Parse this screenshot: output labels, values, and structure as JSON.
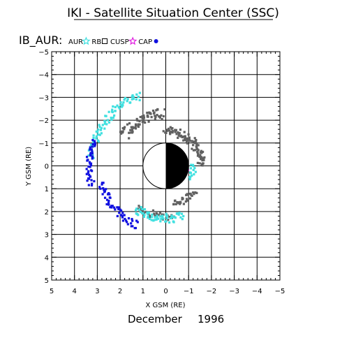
{
  "chart_data": {
    "type": "scatter",
    "title": "IKI - Satellite Situation Center (SSC)",
    "panel_label": "IB_AUR:",
    "xlabel": "X GSM (RE)",
    "ylabel": "Y GSM (RE)",
    "footer_month": "December",
    "footer_year": "1996",
    "xlim": [
      5,
      -5
    ],
    "ylim": [
      -5,
      5
    ],
    "x_ticks": [
      5,
      4,
      3,
      2,
      1,
      0,
      -1,
      -2,
      -3,
      -4,
      -5
    ],
    "x_tick_labels": [
      "5",
      "4",
      "3",
      "2",
      "1",
      "0",
      "−1",
      "−2",
      "−3",
      "−4",
      "−5"
    ],
    "y_ticks": [
      -5,
      -4,
      -3,
      -2,
      -1,
      0,
      1,
      2,
      3,
      4,
      5
    ],
    "y_tick_labels": [
      "−5",
      "−4",
      "−3",
      "−2",
      "−1",
      "0",
      "1",
      "2",
      "3",
      "4",
      "5"
    ],
    "grid": true,
    "legend_position": "top-left",
    "earth": {
      "radius": 1,
      "dayside_color": "#ffffff",
      "nightside_color": "#000000"
    },
    "series": [
      {
        "name": "AUR",
        "marker": "star",
        "color": "#40e0e0"
      },
      {
        "name": "RB",
        "marker": "square",
        "color": "#606060"
      },
      {
        "name": "CUSP",
        "marker": "star",
        "color": "#e020e0"
      },
      {
        "name": "CAP",
        "marker": "circle",
        "color": "#1010e0"
      }
    ],
    "regions": [
      {
        "series": "RB",
        "type": "band",
        "theta_start": 180,
        "theta_end": 272,
        "radius": 1.55,
        "width": 0.35,
        "density": 90,
        "jitter": 0.12
      },
      {
        "series": "RB",
        "type": "band",
        "theta_start": 272,
        "theta_end": 325,
        "radius": 2.3,
        "width": 0.45,
        "density": 70,
        "jitter": 0.15
      },
      {
        "series": "RB",
        "type": "band",
        "theta_start": 100,
        "theta_end": 140,
        "radius": 1.7,
        "width": 0.3,
        "density": 30,
        "jitter": 0.1
      },
      {
        "series": "RB",
        "type": "band",
        "theta_start": 55,
        "theta_end": 100,
        "radius": 2.2,
        "width": 0.3,
        "density": 30,
        "jitter": 0.1
      },
      {
        "series": "AUR",
        "type": "band",
        "theta_start": 290,
        "theta_end": 355,
        "radius": 3.3,
        "width": 0.35,
        "density": 80,
        "jitter": 0.12
      },
      {
        "series": "AUR",
        "type": "band",
        "theta_start": 55,
        "theta_end": 110,
        "radius": 2.3,
        "width": 0.35,
        "density": 60,
        "jitter": 0.1
      },
      {
        "series": "AUR",
        "type": "band",
        "theta_start": 150,
        "theta_end": 185,
        "radius": 1.2,
        "width": 0.2,
        "density": 15,
        "jitter": 0.08
      },
      {
        "series": "CAP",
        "type": "band",
        "theta_start": 340,
        "theta_end": 375,
        "radius": 3.35,
        "width": 0.25,
        "density": 45,
        "jitter": 0.08
      },
      {
        "series": "CAP",
        "type": "band",
        "theta_start": 15,
        "theta_end": 65,
        "radius": 2.9,
        "width": 0.3,
        "density": 55,
        "jitter": 0.1
      },
      {
        "series": "CUSP",
        "type": "band",
        "theta_start": 170,
        "theta_end": 195,
        "radius": 0.9,
        "width": 0.15,
        "density": 12,
        "jitter": 0.05
      }
    ]
  }
}
